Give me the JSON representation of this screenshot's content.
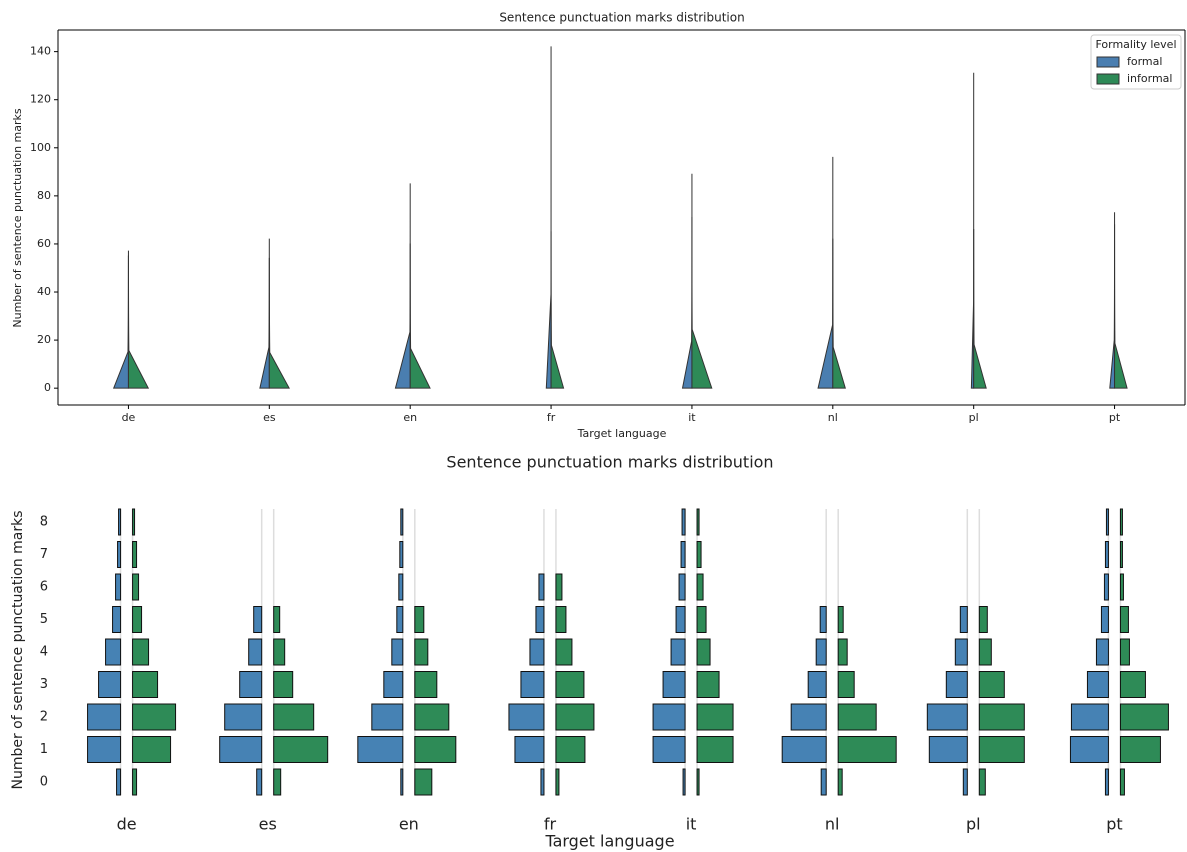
{
  "chart_data": [
    {
      "type": "violin",
      "title": "Sentence punctuation marks distribution",
      "xlabel": "Target language",
      "ylabel": "Number of sentence punctuation marks",
      "categories": [
        "de",
        "es",
        "en",
        "fr",
        "it",
        "nl",
        "pl",
        "pt"
      ],
      "series": [
        {
          "name": "formal",
          "color": "#4a7eb0",
          "values": [
            55,
            62,
            85,
            142,
            71,
            96,
            131,
            73
          ],
          "modes": [
            1,
            2,
            1,
            3,
            2,
            1,
            4,
            3
          ]
        },
        {
          "name": "informal",
          "color": "#2e8a57",
          "values": [
            57,
            54,
            60,
            65,
            89,
            62,
            66,
            68
          ],
          "modes": [
            1,
            1,
            1,
            2,
            1,
            2,
            2,
            2
          ]
        }
      ],
      "ylim": [
        -7,
        149
      ],
      "yticks": [
        0,
        20,
        40,
        60,
        80,
        100,
        120,
        140
      ],
      "legend": {
        "title": "Formality level",
        "loc": "upper right"
      }
    },
    {
      "type": "split-bar",
      "title": "Sentence punctuation marks distribution",
      "xlabel": "Target language",
      "ylabel": "Number of sentence punctuation marks",
      "categories": [
        "de",
        "es",
        "en",
        "fr",
        "it",
        "nl",
        "pl",
        "pt"
      ],
      "rows": [
        0,
        1,
        2,
        3,
        4,
        5,
        6,
        7,
        8
      ],
      "series": [
        {
          "color": "#4682b4",
          "values": [
            [
              4,
              33,
              33,
              22,
              15,
              8,
              5,
              3,
              2
            ],
            [
              5,
              42,
              37,
              22,
              13,
              8,
              0,
              0,
              0
            ],
            [
              2,
              45,
              31,
              19,
              11,
              6,
              4,
              3,
              2
            ],
            [
              3,
              29,
              35,
              23,
              14,
              8,
              5,
              0,
              0
            ],
            [
              2,
              32,
              32,
              22,
              14,
              9,
              6,
              4,
              3
            ],
            [
              5,
              44,
              35,
              18,
              10,
              6,
              0,
              0,
              0
            ],
            [
              4,
              38,
              40,
              21,
              12,
              7,
              0,
              0,
              0
            ],
            [
              3,
              38,
              37,
              21,
              12,
              7,
              4,
              3,
              2
            ]
          ]
        },
        {
          "color": "#2e8b57",
          "values": [
            [
              4,
              38,
              43,
              25,
              16,
              9,
              6,
              4,
              2
            ],
            [
              7,
              54,
              40,
              19,
              11,
              6,
              0,
              0,
              0
            ],
            [
              17,
              41,
              34,
              22,
              13,
              9,
              0,
              0,
              0
            ],
            [
              3,
              29,
              38,
              28,
              16,
              10,
              6,
              0,
              0
            ],
            [
              2,
              36,
              36,
              22,
              13,
              9,
              6,
              4,
              2
            ],
            [
              4,
              58,
              38,
              16,
              9,
              5,
              0,
              0,
              0
            ],
            [
              6,
              45,
              45,
              25,
              12,
              8,
              0,
              0,
              0
            ],
            [
              4,
              40,
              48,
              25,
              9,
              8,
              3,
              2,
              2
            ]
          ]
        }
      ]
    }
  ]
}
